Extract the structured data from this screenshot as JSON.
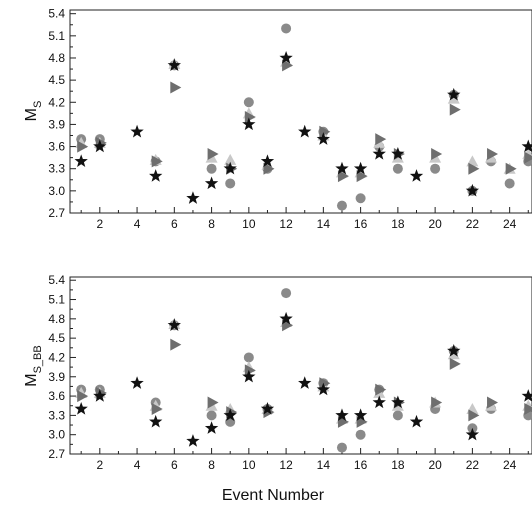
{
  "chart_data": [
    {
      "type": "scatter",
      "title": "",
      "xlabel": "",
      "ylabel": "M",
      "ylabel_sub": "S",
      "xlim": [
        0.4,
        25.2
      ],
      "ylim": [
        2.7,
        5.45
      ],
      "x_ticks": [
        2,
        4,
        6,
        8,
        10,
        12,
        14,
        16,
        18,
        20,
        22,
        24
      ],
      "x_tick_labels": [
        "2",
        "4",
        "6",
        "8",
        "10",
        "12",
        "14",
        "16",
        "18",
        "20",
        "22",
        "24"
      ],
      "y_ticks": [
        2.7,
        3.0,
        3.3,
        3.6,
        3.9,
        4.2,
        4.5,
        4.8,
        5.1,
        5.4
      ],
      "y_tick_labels": [
        "2.7",
        "3.0",
        "3.3",
        "3.6",
        "3.9",
        "4.2",
        "4.5",
        "4.8",
        "5.1",
        "5.4"
      ],
      "grid": false,
      "series": [
        {
          "marker": "circle",
          "color": "#8a8a8a",
          "points": [
            [
              1,
              3.7
            ],
            [
              2,
              3.7
            ],
            [
              5,
              3.4
            ],
            [
              6,
              4.7
            ],
            [
              8,
              3.3
            ],
            [
              9,
              3.1
            ],
            [
              10,
              4.2
            ],
            [
              11,
              3.3
            ],
            [
              12,
              5.2
            ],
            [
              14,
              3.8
            ],
            [
              15,
              2.8
            ],
            [
              16,
              2.9
            ],
            [
              17,
              3.6
            ],
            [
              18,
              3.3
            ],
            [
              20,
              3.3
            ],
            [
              21,
              4.3
            ],
            [
              22,
              3.0
            ],
            [
              23,
              3.4
            ],
            [
              24,
              3.1
            ],
            [
              25,
              3.4
            ]
          ]
        },
        {
          "marker": "triangle-up",
          "color": "#c8c8c8",
          "points": [
            [
              1,
              3.65
            ],
            [
              2,
              3.65
            ],
            [
              5,
              3.42
            ],
            [
              6,
              4.72
            ],
            [
              8,
              3.45
            ],
            [
              9,
              3.42
            ],
            [
              10,
              4.05
            ],
            [
              11,
              3.35
            ],
            [
              12,
              4.75
            ],
            [
              14,
              3.75
            ],
            [
              15,
              3.25
            ],
            [
              16,
              3.25
            ],
            [
              17,
              3.65
            ],
            [
              18,
              3.45
            ],
            [
              20,
              3.45
            ],
            [
              21,
              4.25
            ],
            [
              22,
              3.4
            ],
            [
              23,
              3.45
            ],
            [
              24,
              3.3
            ],
            [
              25,
              3.5
            ]
          ]
        },
        {
          "marker": "triangle-right",
          "color": "#6e6e6e",
          "points": [
            [
              1,
              3.6
            ],
            [
              2,
              3.65
            ],
            [
              5,
              3.4
            ],
            [
              6,
              4.4
            ],
            [
              8,
              3.5
            ],
            [
              9,
              3.3
            ],
            [
              10,
              4.0
            ],
            [
              11,
              3.3
            ],
            [
              12,
              4.7
            ],
            [
              14,
              3.8
            ],
            [
              15,
              3.2
            ],
            [
              16,
              3.2
            ],
            [
              17,
              3.7
            ],
            [
              18,
              3.5
            ],
            [
              20,
              3.5
            ],
            [
              21,
              4.1
            ],
            [
              22,
              3.3
            ],
            [
              23,
              3.5
            ],
            [
              24,
              3.3
            ],
            [
              25,
              3.45
            ]
          ]
        },
        {
          "marker": "star",
          "color": "#111111",
          "points": [
            [
              1,
              3.4
            ],
            [
              2,
              3.6
            ],
            [
              4,
              3.8
            ],
            [
              5,
              3.2
            ],
            [
              6,
              4.7
            ],
            [
              7,
              2.9
            ],
            [
              8,
              3.1
            ],
            [
              9,
              3.3
            ],
            [
              10,
              3.9
            ],
            [
              11,
              3.4
            ],
            [
              12,
              4.8
            ],
            [
              13,
              3.8
            ],
            [
              14,
              3.7
            ],
            [
              15,
              3.3
            ],
            [
              16,
              3.3
            ],
            [
              17,
              3.5
            ],
            [
              18,
              3.5
            ],
            [
              19,
              3.2
            ],
            [
              21,
              4.3
            ],
            [
              22,
              3.0
            ],
            [
              25,
              3.6
            ]
          ]
        }
      ]
    },
    {
      "type": "scatter",
      "title": "",
      "xlabel": "Event Number",
      "ylabel": "M",
      "ylabel_sub": "S_BB",
      "xlim": [
        0.4,
        25.2
      ],
      "ylim": [
        2.7,
        5.45
      ],
      "x_ticks": [
        2,
        4,
        6,
        8,
        10,
        12,
        14,
        16,
        18,
        20,
        22,
        24
      ],
      "x_tick_labels": [
        "2",
        "4",
        "6",
        "8",
        "10",
        "12",
        "14",
        "16",
        "18",
        "20",
        "22",
        "24"
      ],
      "y_ticks": [
        2.7,
        3.0,
        3.3,
        3.6,
        3.9,
        4.2,
        4.5,
        4.8,
        5.1,
        5.4
      ],
      "y_tick_labels": [
        "2.7",
        "3.0",
        "3.3",
        "3.6",
        "3.9",
        "4.2",
        "4.5",
        "4.8",
        "5.1",
        "5.4"
      ],
      "grid": false,
      "series": [
        {
          "marker": "circle",
          "color": "#8a8a8a",
          "points": [
            [
              1,
              3.7
            ],
            [
              2,
              3.7
            ],
            [
              5,
              3.5
            ],
            [
              6,
              4.7
            ],
            [
              8,
              3.3
            ],
            [
              9,
              3.2
            ],
            [
              10,
              4.2
            ],
            [
              11,
              3.4
            ],
            [
              12,
              5.2
            ],
            [
              14,
              3.8
            ],
            [
              15,
              2.8
            ],
            [
              16,
              3.0
            ],
            [
              17,
              3.7
            ],
            [
              18,
              3.3
            ],
            [
              20,
              3.4
            ],
            [
              21,
              4.3
            ],
            [
              22,
              3.1
            ],
            [
              23,
              3.4
            ],
            [
              25,
              3.3
            ]
          ]
        },
        {
          "marker": "triangle-up",
          "color": "#c8c8c8",
          "points": [
            [
              1,
              3.65
            ],
            [
              2,
              3.65
            ],
            [
              5,
              3.45
            ],
            [
              6,
              4.72
            ],
            [
              8,
              3.45
            ],
            [
              9,
              3.4
            ],
            [
              10,
              4.05
            ],
            [
              11,
              3.4
            ],
            [
              12,
              4.75
            ],
            [
              14,
              3.75
            ],
            [
              15,
              3.25
            ],
            [
              16,
              3.25
            ],
            [
              17,
              3.65
            ],
            [
              18,
              3.45
            ],
            [
              20,
              3.5
            ],
            [
              21,
              4.25
            ],
            [
              22,
              3.4
            ],
            [
              23,
              3.45
            ],
            [
              25,
              3.45
            ]
          ]
        },
        {
          "marker": "triangle-right",
          "color": "#6e6e6e",
          "points": [
            [
              1,
              3.6
            ],
            [
              2,
              3.65
            ],
            [
              5,
              3.4
            ],
            [
              6,
              4.4
            ],
            [
              8,
              3.5
            ],
            [
              9,
              3.35
            ],
            [
              10,
              4.0
            ],
            [
              11,
              3.35
            ],
            [
              12,
              4.7
            ],
            [
              14,
              3.8
            ],
            [
              15,
              3.2
            ],
            [
              16,
              3.2
            ],
            [
              17,
              3.7
            ],
            [
              18,
              3.5
            ],
            [
              20,
              3.5
            ],
            [
              21,
              4.1
            ],
            [
              22,
              3.3
            ],
            [
              23,
              3.5
            ],
            [
              25,
              3.4
            ]
          ]
        },
        {
          "marker": "star",
          "color": "#111111",
          "points": [
            [
              1,
              3.4
            ],
            [
              2,
              3.6
            ],
            [
              4,
              3.8
            ],
            [
              5,
              3.2
            ],
            [
              6,
              4.7
            ],
            [
              7,
              2.9
            ],
            [
              8,
              3.1
            ],
            [
              9,
              3.3
            ],
            [
              10,
              3.9
            ],
            [
              11,
              3.4
            ],
            [
              12,
              4.8
            ],
            [
              13,
              3.8
            ],
            [
              14,
              3.7
            ],
            [
              15,
              3.3
            ],
            [
              16,
              3.3
            ],
            [
              17,
              3.5
            ],
            [
              18,
              3.5
            ],
            [
              19,
              3.2
            ],
            [
              21,
              4.3
            ],
            [
              22,
              3.0
            ],
            [
              25,
              3.6
            ]
          ]
        }
      ]
    }
  ]
}
